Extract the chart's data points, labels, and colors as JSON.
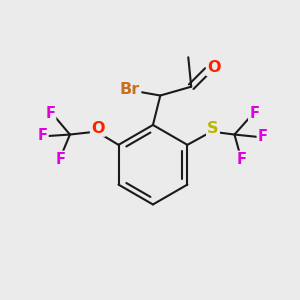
{
  "bg_color": "#ebebeb",
  "bond_color": "#1a1a1a",
  "bond_width": 1.5,
  "atom_colors": {
    "Br": "#c87020",
    "O": "#ff2000",
    "S": "#b8b800",
    "F": "#e000e0",
    "C": "#1a1a1a"
  },
  "font_size_main": 11.5,
  "font_size_F": 10.5
}
